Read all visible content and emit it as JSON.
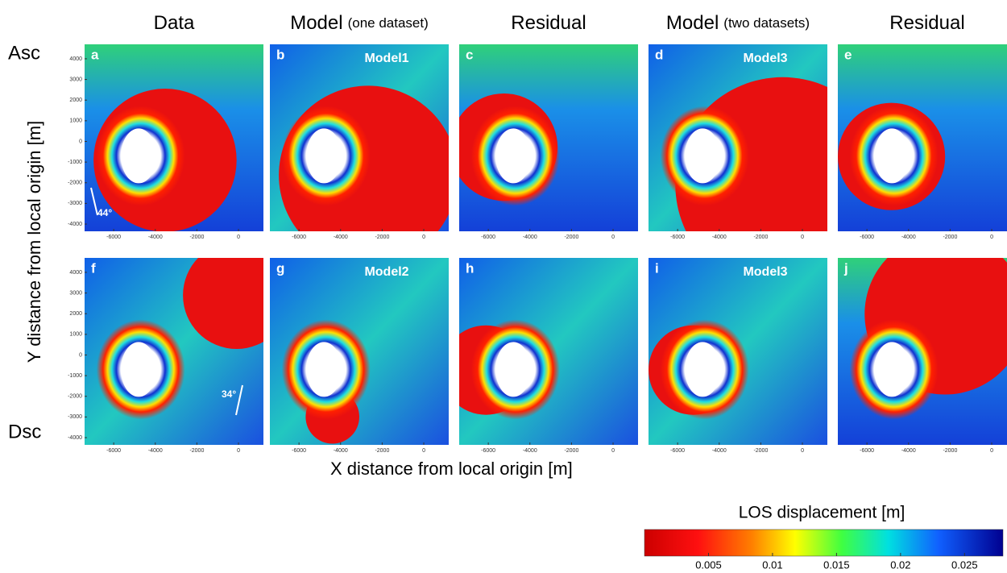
{
  "figure": {
    "columns": [
      {
        "title": "Data"
      },
      {
        "title": "Model",
        "note": "(one dataset)"
      },
      {
        "title": "Residual"
      },
      {
        "title": "Model",
        "note": "(two datasets)"
      },
      {
        "title": "Residual"
      }
    ],
    "rows": [
      "Asc",
      "Dsc"
    ],
    "panels": [
      {
        "letter": "a"
      },
      {
        "letter": "b",
        "label": "Model1"
      },
      {
        "letter": "c"
      },
      {
        "letter": "d",
        "label": "Model3"
      },
      {
        "letter": "e"
      },
      {
        "letter": "f"
      },
      {
        "letter": "g",
        "label": "Model2"
      },
      {
        "letter": "h"
      },
      {
        "letter": "i",
        "label": "Model3"
      },
      {
        "letter": "j"
      }
    ],
    "angles": [
      "44°",
      "34°"
    ],
    "axes": {
      "xlabel": "X distance from local origin [m]",
      "ylabel": "Y distance from local origin [m]",
      "xlim": [
        -7400,
        1200
      ],
      "xticks": [
        -6000,
        -4000,
        -2000,
        0
      ],
      "ylim": [
        -4350,
        4700
      ],
      "yticks": [
        4000,
        3000,
        2000,
        1000,
        0,
        -1000,
        -2000,
        -3000,
        -4000
      ]
    },
    "colorbar": {
      "title": "LOS displacement [m]",
      "lim": [
        0,
        0.028
      ],
      "ticks": [
        0.005,
        0.01,
        0.015,
        0.02,
        0.025
      ]
    }
  }
}
